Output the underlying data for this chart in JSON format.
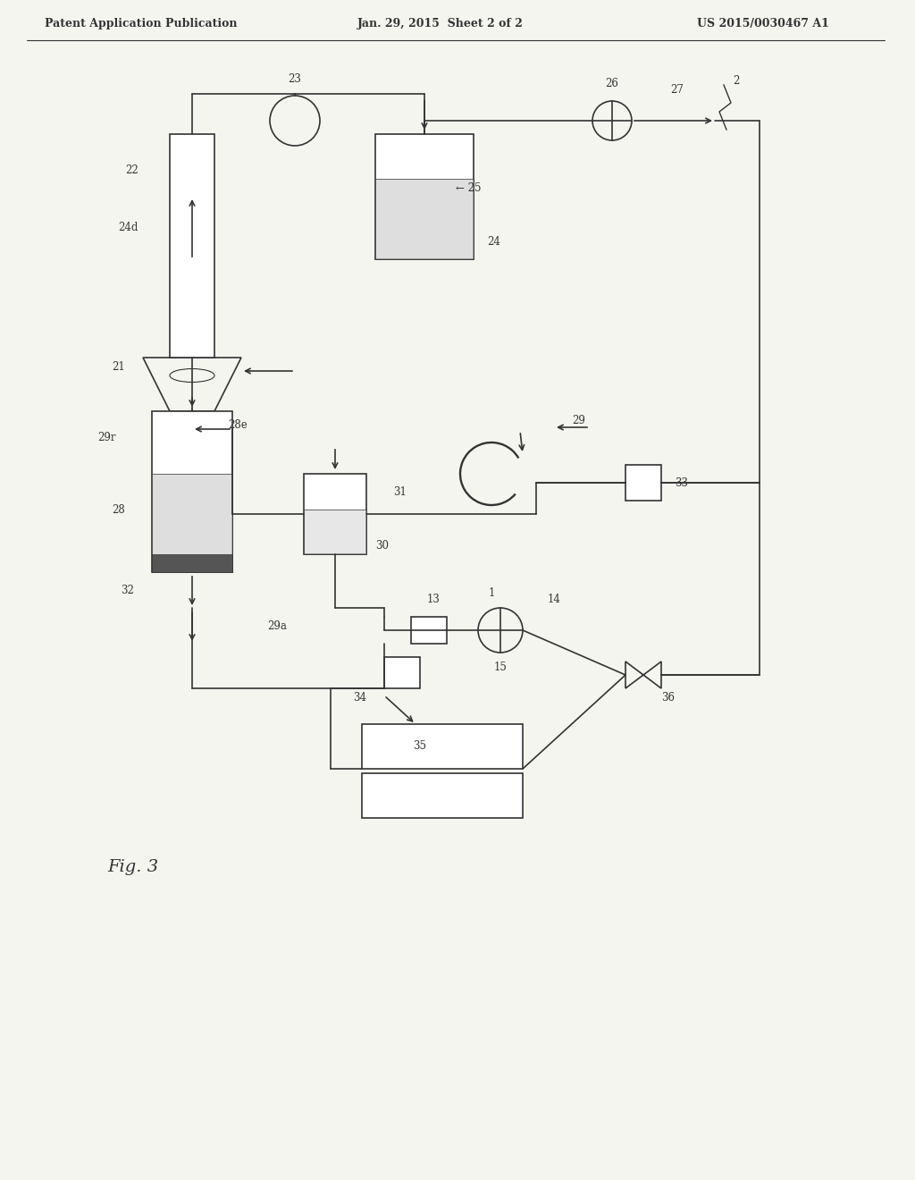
{
  "bg_color": "#f5f5f0",
  "header_left": "Patent Application Publication",
  "header_mid": "Jan. 29, 2015  Sheet 2 of 2",
  "header_right": "US 2015/0030467 A1",
  "fig_label": "Fig. 3",
  "line_color": "#333333",
  "fill_light": "#cccccc",
  "fill_dark": "#888888",
  "fill_hatch": "#aaaaaa"
}
